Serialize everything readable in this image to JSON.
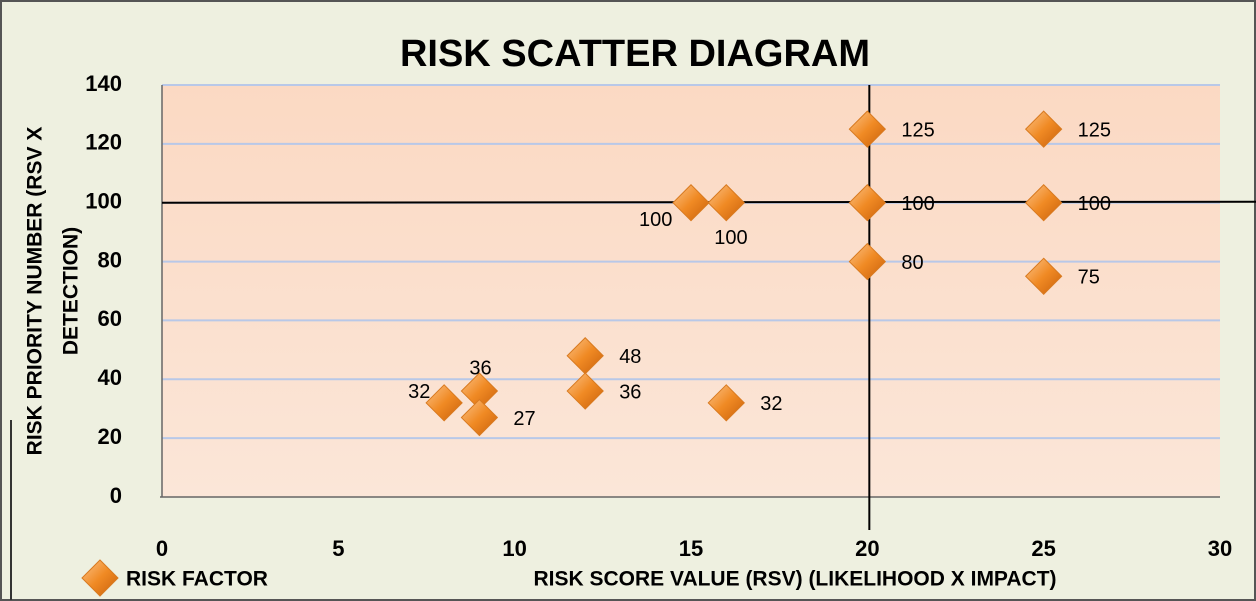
{
  "chart_data": {
    "type": "scatter",
    "title": "RISK SCATTER DIAGRAM",
    "xlabel": "RISK SCORE VALUE (RSV) (LIKELIHOOD X IMPACT)",
    "ylabel": [
      "RISK PRIORITY NUMBER (RSV X",
      "DETECTION)"
    ],
    "series": [
      {
        "name": "RISK FACTOR",
        "color": "#f08a24",
        "x": [
          8,
          9,
          9,
          12,
          12,
          15,
          16,
          16,
          20,
          20,
          20,
          25,
          25,
          25
        ],
        "values": [
          32,
          36,
          27,
          48,
          36,
          100,
          100,
          32,
          125,
          100,
          80,
          125,
          100,
          75
        ]
      }
    ],
    "xlim": [
      0,
      30
    ],
    "xticks": [
      0,
      5,
      10,
      15,
      20,
      25,
      30
    ],
    "ylim": [
      0,
      140
    ],
    "yticks": [
      0,
      20,
      40,
      60,
      80,
      100,
      120,
      140
    ],
    "grid": true,
    "vlines": [
      20
    ],
    "hlines": [
      100
    ],
    "legend": "bottom-left"
  }
}
